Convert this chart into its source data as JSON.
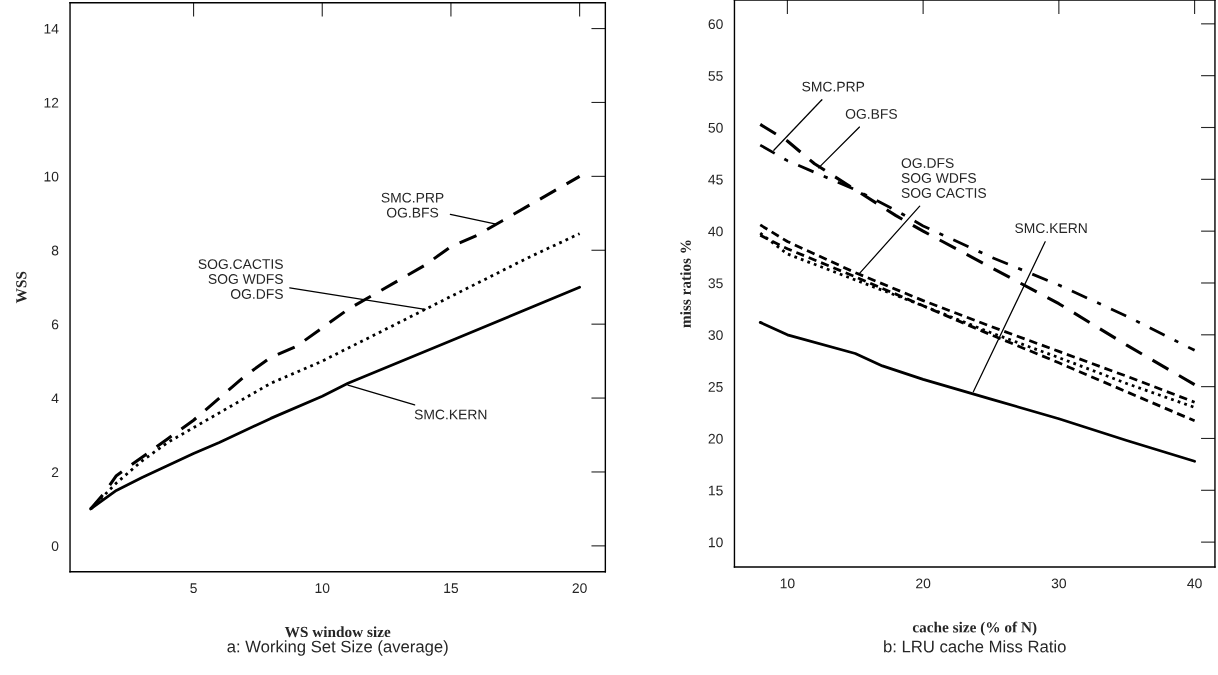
{
  "chart_data": [
    {
      "type": "line",
      "title": "a: Working Set Size (average)",
      "xlabel": "WS window size",
      "ylabel": "WSS",
      "xlim": [
        0.2,
        21
      ],
      "ylim": [
        -0.7,
        14.7
      ],
      "xticks": [
        5,
        10,
        15,
        20
      ],
      "yticks": [
        0,
        2,
        4,
        6,
        8,
        10,
        12,
        14
      ],
      "grid": false,
      "legend": false,
      "series": [
        {
          "color": "#000000",
          "line_style": "dashed",
          "x": [
            1,
            1.5,
            2,
            3,
            4,
            5,
            6,
            7,
            8,
            9,
            10,
            11,
            12,
            13,
            14,
            15,
            16,
            17,
            18,
            19,
            20
          ],
          "values": [
            1.0,
            1.4,
            1.9,
            2.4,
            2.9,
            3.4,
            4.0,
            4.6,
            5.1,
            5.4,
            5.9,
            6.4,
            6.8,
            7.2,
            7.6,
            8.1,
            8.4,
            8.8,
            9.2,
            9.6,
            10.0
          ]
        },
        {
          "color": "#000000",
          "line_style": "dotted",
          "x": [
            1,
            2,
            3,
            4,
            5,
            6,
            8,
            10,
            12,
            14,
            16,
            18,
            20
          ],
          "values": [
            1.0,
            1.7,
            2.3,
            2.8,
            3.2,
            3.6,
            4.4,
            5.0,
            5.7,
            6.4,
            7.1,
            7.8,
            8.45
          ]
        },
        {
          "color": "#000000",
          "line_style": "solid",
          "x": [
            1,
            2,
            3,
            5,
            6,
            8,
            10,
            11,
            15,
            20
          ],
          "values": [
            1.0,
            1.5,
            1.85,
            2.5,
            2.8,
            3.45,
            4.05,
            4.4,
            5.55,
            7.0
          ]
        }
      ],
      "annotations": [
        {
          "text": "SMC.PRP\nOG.BFS",
          "x": 16.8,
          "y": 8.7
        },
        {
          "text": "SOG.CACTIS\nSOG WDFS\nOG.DFS",
          "x": 14,
          "y": 6.4
        },
        {
          "text": "SMC.KERN",
          "x": 11,
          "y": 4.35
        }
      ]
    },
    {
      "type": "line",
      "title": "b: LRU cache Miss Ratio",
      "xlabel": "cache size (% of N)",
      "ylabel": "miss ratios %",
      "xlim": [
        6.1,
        41.5
      ],
      "ylim": [
        7.6,
        62.3
      ],
      "xticks": [
        10,
        20,
        30,
        40
      ],
      "yticks": [
        10,
        15,
        20,
        25,
        30,
        35,
        40,
        45,
        50,
        55,
        60
      ],
      "grid": false,
      "legend": false,
      "series": [
        {
          "color": "#000000",
          "line_style": "dashed",
          "x": [
            8,
            10,
            12,
            15,
            18,
            20,
            25,
            30,
            35,
            40
          ],
          "values": [
            50.3,
            48.7,
            46.5,
            44,
            41.5,
            40,
            36.5,
            33,
            29,
            25.2
          ]
        },
        {
          "color": "#000000",
          "line_style": "dashdot",
          "x": [
            8,
            10,
            15,
            18,
            20,
            25,
            30,
            35,
            40
          ],
          "values": [
            48.3,
            46.8,
            44,
            42,
            40.5,
            37.5,
            34.8,
            31.8,
            28.5
          ]
        },
        {
          "color": "#000000",
          "line_style": "shortdash",
          "x": [
            8,
            10,
            15,
            20,
            25,
            30,
            35,
            40
          ],
          "values": [
            40.6,
            39,
            36,
            33.3,
            30.8,
            28.4,
            26,
            23.5
          ]
        },
        {
          "color": "#000000",
          "line_style": "dotted",
          "x": [
            8,
            10,
            15,
            20,
            25,
            30,
            35,
            40
          ],
          "values": [
            39.8,
            37.8,
            35.3,
            32.8,
            30.2,
            27.8,
            25.3,
            23
          ]
        },
        {
          "color": "#000000",
          "line_style": "shortdash",
          "x": [
            8,
            10,
            15,
            20,
            25,
            30,
            35,
            40
          ],
          "values": [
            39.6,
            38.3,
            35.6,
            32.8,
            30,
            27.3,
            24.5,
            21.7
          ]
        },
        {
          "color": "#000000",
          "line_style": "solid",
          "x": [
            8,
            10,
            15,
            17,
            20,
            25,
            30,
            35,
            40
          ],
          "values": [
            31.2,
            30,
            28.2,
            27,
            25.7,
            23.8,
            21.9,
            19.8,
            17.8
          ]
        }
      ],
      "annotations": [
        {
          "text": "SMC.PRP",
          "x": 9,
          "y": 47.8
        },
        {
          "text": "OG.BFS",
          "x": 12.3,
          "y": 46.1
        },
        {
          "text": "OG.DFS\nSOG WDFS\nSOG CACTIS",
          "x": 15.3,
          "y": 35.9
        },
        {
          "text": "SMC.KERN",
          "x": 23.7,
          "y": 24.5
        }
      ]
    }
  ]
}
